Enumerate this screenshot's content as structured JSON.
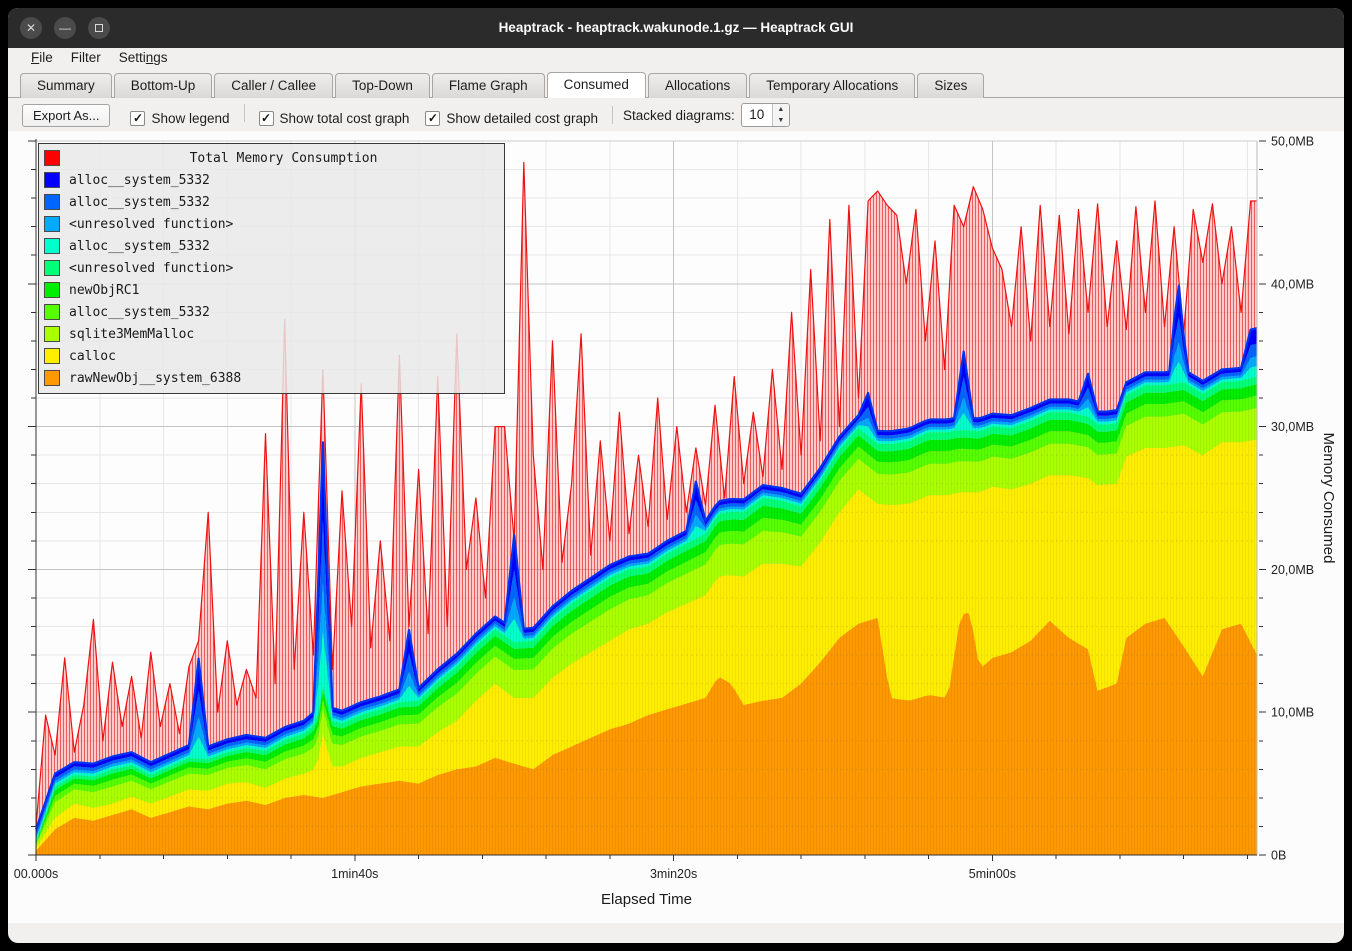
{
  "window": {
    "title": "Heaptrack - heaptrack.wakunode.1.gz — Heaptrack GUI",
    "controls": [
      {
        "name": "close",
        "glyph": "✕"
      },
      {
        "name": "minimize",
        "glyph": "—"
      },
      {
        "name": "maximize",
        "glyph": "square"
      }
    ]
  },
  "menu": {
    "items": [
      {
        "label": "File",
        "underline": 0
      },
      {
        "label": "Filter",
        "underline": null
      },
      {
        "label": "Settings",
        "underline": 5
      }
    ]
  },
  "tabs": {
    "active": "Consumed",
    "items": [
      "Summary",
      "Bottom-Up",
      "Caller / Callee",
      "Top-Down",
      "Flame Graph",
      "Consumed",
      "Allocations",
      "Temporary Allocations",
      "Sizes"
    ]
  },
  "toolbar": {
    "export_label": "Export As...",
    "checkboxes": [
      {
        "label": "Show legend",
        "checked": true
      },
      {
        "label": "Show total cost graph",
        "checked": true
      },
      {
        "label": "Show detailed cost graph",
        "checked": true
      }
    ],
    "separator_after": "Show legend",
    "stacked_label": "Stacked diagrams:",
    "stacked_value": "10"
  },
  "chart_data": {
    "type": "area",
    "title": "Total Memory Consumption",
    "xlabel": "Elapsed Time",
    "ylabel": "Memory Consumed",
    "xlim_s": [
      0,
      383
    ],
    "ylim_mb": [
      0,
      50
    ],
    "x_ticks": [
      {
        "t": 0,
        "label": "00.000s"
      },
      {
        "t": 100,
        "label": "1min40s"
      },
      {
        "t": 200,
        "label": "3min20s"
      },
      {
        "t": 300,
        "label": "5min00s"
      }
    ],
    "x_minor_step_s": 20,
    "y_ticks": [
      {
        "mb": 0,
        "label": "0B"
      },
      {
        "mb": 10,
        "label": "10,0MB"
      },
      {
        "mb": 20,
        "label": "20,0MB"
      },
      {
        "mb": 30,
        "label": "30,0MB"
      },
      {
        "mb": 40,
        "label": "40,0MB"
      },
      {
        "mb": 50,
        "label": "50,0MB"
      }
    ],
    "y_minor_step_mb": 2,
    "colors": {
      "grid_minor": "#e7e7e7",
      "grid_major": "#c4c4c4",
      "axis": "#333333",
      "plot_bg": "#fdfdfd",
      "total_line": "#ee1111",
      "stack_top_line": "#0033ee"
    },
    "legend": [
      {
        "label": "Total Memory Consumption",
        "color": "#ff0000"
      },
      {
        "label": "alloc__system_5332",
        "color": "#0000ff"
      },
      {
        "label": "alloc__system_5332",
        "color": "#0066ff"
      },
      {
        "label": "<unresolved function>",
        "color": "#00aaff"
      },
      {
        "label": "alloc__system_5332",
        "color": "#00ffcc"
      },
      {
        "label": "<unresolved function>",
        "color": "#00ff77"
      },
      {
        "label": "newObjRC1",
        "color": "#00ee00"
      },
      {
        "label": "alloc__system_5332",
        "color": "#55ff00"
      },
      {
        "label": "sqlite3MemMalloc",
        "color": "#aaff00"
      },
      {
        "label": "calloc",
        "color": "#ffee00"
      },
      {
        "label": "rawNewObj__system_6388",
        "color": "#ff9900"
      }
    ],
    "total_mb": {
      "t0": 0,
      "dt": 3,
      "values": [
        2,
        9.8,
        7,
        13.8,
        7.2,
        10.5,
        16.5,
        8,
        13.5,
        9,
        12.5,
        8.2,
        14.2,
        9,
        12,
        8.5,
        13.2,
        15,
        24,
        10,
        15,
        10.5,
        13,
        11,
        29.5,
        12,
        37.5,
        13,
        24,
        14,
        34,
        13,
        25.5,
        16,
        33,
        14.5,
        22,
        15,
        35,
        16,
        27,
        15.5,
        33.5,
        16,
        36.5,
        20,
        25,
        18,
        30,
        30,
        22,
        48.5,
        28,
        20,
        36,
        20.5,
        26,
        36.5,
        21,
        29,
        22,
        31,
        22.5,
        28,
        23,
        32,
        23.5,
        30,
        24,
        28.5,
        24.5,
        31.5,
        25,
        33.5,
        26,
        31,
        26.5,
        34,
        27,
        38,
        28,
        41,
        29,
        44.5,
        30,
        45.5,
        32,
        45.8,
        46.5,
        45.5,
        44.8,
        40,
        45.2,
        36,
        43,
        34,
        45.5,
        44,
        46.8,
        45.2,
        42.5,
        41,
        37,
        44,
        36,
        45.5,
        37,
        44.8,
        36.5,
        45.2,
        38,
        45.6,
        37,
        43,
        36.8,
        45.4,
        38,
        45.8,
        37,
        44,
        36.5,
        45.2,
        41.5,
        45.6,
        40,
        44,
        38,
        45.8
      ]
    },
    "layers_mb": {
      "rawNewObj__system_6388": [
        [
          0,
          0.3
        ],
        [
          6,
          1.8
        ],
        [
          12,
          2.6
        ],
        [
          18,
          2.4
        ],
        [
          24,
          2.8
        ],
        [
          30,
          3.2
        ],
        [
          36,
          2.6
        ],
        [
          42,
          3.0
        ],
        [
          48,
          3.4
        ],
        [
          54,
          3.2
        ],
        [
          60,
          3.6
        ],
        [
          66,
          3.8
        ],
        [
          72,
          3.5
        ],
        [
          78,
          4.0
        ],
        [
          84,
          4.2
        ],
        [
          90,
          4.0
        ],
        [
          96,
          4.4
        ],
        [
          102,
          4.8
        ],
        [
          108,
          5.0
        ],
        [
          114,
          5.2
        ],
        [
          120,
          5.0
        ],
        [
          126,
          5.6
        ],
        [
          132,
          6.0
        ],
        [
          138,
          6.2
        ],
        [
          144,
          6.8
        ],
        [
          150,
          6.4
        ],
        [
          156,
          6.0
        ],
        [
          162,
          7.0
        ],
        [
          168,
          7.6
        ],
        [
          174,
          8.2
        ],
        [
          180,
          8.8
        ],
        [
          186,
          9.2
        ],
        [
          192,
          9.8
        ],
        [
          198,
          10.2
        ],
        [
          204,
          10.6
        ],
        [
          210,
          11.0
        ],
        [
          214,
          12.5
        ],
        [
          218,
          12.0
        ],
        [
          222,
          10.5
        ],
        [
          228,
          10.8
        ],
        [
          234,
          11.0
        ],
        [
          240,
          12.0
        ],
        [
          246,
          13.5
        ],
        [
          252,
          15.2
        ],
        [
          258,
          16.2
        ],
        [
          264,
          16.6
        ],
        [
          268,
          11.0
        ],
        [
          274,
          10.8
        ],
        [
          280,
          11.2
        ],
        [
          286,
          11.0
        ],
        [
          290,
          16.8
        ],
        [
          293,
          17.0
        ],
        [
          296,
          13.0
        ],
        [
          300,
          13.8
        ],
        [
          306,
          14.2
        ],
        [
          312,
          15.0
        ],
        [
          318,
          16.4
        ],
        [
          324,
          15.2
        ],
        [
          330,
          14.4
        ],
        [
          333,
          11.5
        ],
        [
          339,
          12.0
        ],
        [
          342,
          15.2
        ],
        [
          348,
          16.2
        ],
        [
          354,
          16.6
        ],
        [
          360,
          14.6
        ],
        [
          366,
          12.5
        ],
        [
          372,
          15.8
        ],
        [
          378,
          16.2
        ],
        [
          383,
          14.0
        ]
      ],
      "calloc": [
        [
          0,
          0.2
        ],
        [
          6,
          0.8
        ],
        [
          12,
          1.0
        ],
        [
          24,
          0.8
        ],
        [
          36,
          1.0
        ],
        [
          48,
          1.2
        ],
        [
          60,
          1.4
        ],
        [
          72,
          1.2
        ],
        [
          84,
          1.5
        ],
        [
          88,
          2.0
        ],
        [
          90,
          4.5
        ],
        [
          93,
          2.0
        ],
        [
          96,
          1.8
        ],
        [
          108,
          2.2
        ],
        [
          120,
          2.6
        ],
        [
          132,
          3.4
        ],
        [
          138,
          4.6
        ],
        [
          144,
          5.2
        ],
        [
          150,
          4.6
        ],
        [
          156,
          5.0
        ],
        [
          162,
          5.4
        ],
        [
          168,
          5.8
        ],
        [
          174,
          6.0
        ],
        [
          180,
          6.2
        ],
        [
          186,
          6.6
        ],
        [
          192,
          6.4
        ],
        [
          198,
          6.8
        ],
        [
          204,
          7.0
        ],
        [
          210,
          7.2
        ],
        [
          214,
          7.0
        ],
        [
          218,
          7.6
        ],
        [
          222,
          9.0
        ],
        [
          228,
          9.6
        ],
        [
          234,
          9.4
        ],
        [
          240,
          8.2
        ],
        [
          246,
          8.4
        ],
        [
          252,
          8.8
        ],
        [
          258,
          9.4
        ],
        [
          264,
          8.0
        ],
        [
          268,
          13.5
        ],
        [
          274,
          13.8
        ],
        [
          280,
          14.0
        ],
        [
          286,
          14.2
        ],
        [
          290,
          8.6
        ],
        [
          293,
          8.4
        ],
        [
          296,
          12.4
        ],
        [
          300,
          12.0
        ],
        [
          306,
          11.4
        ],
        [
          312,
          11.0
        ],
        [
          318,
          10.2
        ],
        [
          324,
          11.4
        ],
        [
          330,
          12.0
        ],
        [
          333,
          14.4
        ],
        [
          339,
          14.0
        ],
        [
          342,
          12.7
        ],
        [
          348,
          12.3
        ],
        [
          354,
          11.9
        ],
        [
          360,
          14.1
        ],
        [
          366,
          15.5
        ],
        [
          372,
          13.1
        ],
        [
          378,
          12.7
        ],
        [
          383,
          15.1
        ]
      ],
      "green_band": [
        [
          0,
          0.4
        ],
        [
          6,
          2.2
        ],
        [
          12,
          2.0
        ],
        [
          24,
          2.4
        ],
        [
          36,
          2.0
        ],
        [
          48,
          2.2
        ],
        [
          60,
          2.2
        ],
        [
          72,
          2.6
        ],
        [
          84,
          2.8
        ],
        [
          90,
          3.4
        ],
        [
          96,
          3.0
        ],
        [
          108,
          3.0
        ],
        [
          120,
          3.2
        ],
        [
          132,
          3.8
        ],
        [
          144,
          3.8
        ],
        [
          156,
          4.0
        ],
        [
          168,
          4.2
        ],
        [
          180,
          4.4
        ],
        [
          192,
          4.0
        ],
        [
          204,
          4.2
        ],
        [
          216,
          4.4
        ],
        [
          228,
          4.6
        ],
        [
          240,
          4.2
        ],
        [
          252,
          4.4
        ],
        [
          264,
          4.2
        ],
        [
          276,
          4.4
        ],
        [
          288,
          4.4
        ],
        [
          300,
          4.2
        ],
        [
          312,
          4.4
        ],
        [
          324,
          4.4
        ],
        [
          336,
          4.2
        ],
        [
          348,
          4.4
        ],
        [
          360,
          4.4
        ],
        [
          372,
          4.2
        ],
        [
          383,
          4.4
        ]
      ],
      "blue_band": [
        [
          0,
          0.9
        ],
        [
          48,
          0.9
        ],
        [
          51,
          7
        ],
        [
          54,
          0.9
        ],
        [
          87,
          0.9
        ],
        [
          90,
          17
        ],
        [
          93,
          0.9
        ],
        [
          114,
          0.9
        ],
        [
          117,
          5
        ],
        [
          120,
          0.9
        ],
        [
          147,
          0.9
        ],
        [
          150,
          7.5
        ],
        [
          153,
          0.9
        ],
        [
          204,
          0.9
        ],
        [
          207,
          4
        ],
        [
          210,
          0.9
        ],
        [
          258,
          0.9
        ],
        [
          261,
          3
        ],
        [
          264,
          0.9
        ],
        [
          288,
          0.9
        ],
        [
          291,
          5.5
        ],
        [
          294,
          0.9
        ],
        [
          327,
          0.9
        ],
        [
          330,
          3
        ],
        [
          333,
          0.9
        ],
        [
          356,
          0.9
        ],
        [
          358,
          8
        ],
        [
          361,
          0.9
        ],
        [
          378,
          0.9
        ],
        [
          381,
          3.4
        ],
        [
          383,
          3.4
        ]
      ]
    },
    "stack_order": [
      {
        "legend": 10,
        "source": "rawNewObj__system_6388"
      },
      {
        "legend": 9,
        "source": "calloc"
      },
      {
        "legend": 8,
        "source": "green_band",
        "fraction": 0.5
      },
      {
        "legend": 7,
        "source": "green_band",
        "fraction": 0.2
      },
      {
        "legend": 6,
        "source": "green_band",
        "fraction": 0.18
      },
      {
        "legend": 5,
        "source": "green_band",
        "fraction": 0.12
      },
      {
        "legend": 4,
        "source": "blue_band",
        "fraction": 0.22
      },
      {
        "legend": 3,
        "source": "blue_band",
        "fraction": 0.2
      },
      {
        "legend": 2,
        "source": "blue_band",
        "fraction": 0.26
      },
      {
        "legend": 1,
        "source": "blue_band",
        "fraction": 0.32
      }
    ]
  }
}
